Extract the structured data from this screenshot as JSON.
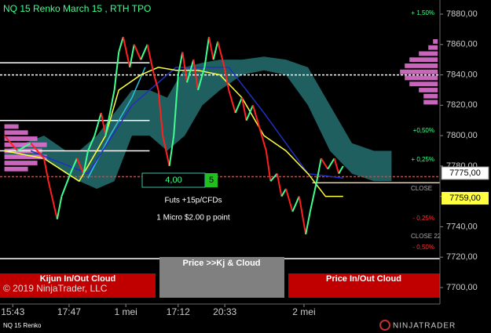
{
  "chart_data": {
    "type": "line",
    "title": "NQ 15 Renko March 15 , RTH TPO",
    "xlim": [
      0,
      100
    ],
    "xticks": [
      {
        "value": 2.9,
        "label": "15:43"
      },
      {
        "value": 15.7,
        "label": "17:47"
      },
      {
        "value": 28.6,
        "label": "1 mei"
      },
      {
        "value": 40.5,
        "label": "17:12"
      },
      {
        "value": 51.1,
        "label": "20:33"
      },
      {
        "value": 69.1,
        "label": "2 mei"
      }
    ],
    "ylim": [
      7690.7,
      7889.3
    ],
    "yticks": [
      {
        "value": 7880,
        "label": "7880,00"
      },
      {
        "value": 7860,
        "label": "7860,00"
      },
      {
        "value": 7840,
        "label": "7840,00"
      },
      {
        "value": 7820,
        "label": "7820,00"
      },
      {
        "value": 7800,
        "label": "7800,00"
      },
      {
        "value": 7780,
        "label": "7780,00"
      },
      {
        "value": 7760,
        "label": "7760,00"
      },
      {
        "value": 7740,
        "label": "7740,00"
      },
      {
        "value": 7720,
        "label": "7720,00"
      },
      {
        "value": 7700,
        "label": "7700,00"
      }
    ],
    "cloud": {
      "color": "#1f5f5f",
      "x": [
        1,
        10,
        15,
        18,
        22,
        26,
        30,
        34,
        38,
        42,
        46,
        50,
        55,
        60,
        65,
        70,
        75,
        80,
        85,
        89
      ],
      "upper": [
        7790,
        7800,
        7790,
        7790,
        7800,
        7815,
        7830,
        7830,
        7825,
        7845,
        7848,
        7850,
        7850,
        7852,
        7850,
        7845,
        7820,
        7795,
        7790,
        7790
      ],
      "lower": [
        7786,
        7785,
        7775,
        7770,
        7765,
        7770,
        7800,
        7800,
        7790,
        7800,
        7820,
        7830,
        7840,
        7843,
        7840,
        7820,
        7790,
        7775,
        7770,
        7770
      ]
    },
    "profile": {
      "color": "#e070d0",
      "left": {
        "x0": 1,
        "prices": [
          7806,
          7802,
          7798,
          7794,
          7790,
          7786,
          7782,
          7778
        ],
        "sizes": [
          3,
          5,
          7,
          9,
          8,
          9,
          7,
          5
        ]
      },
      "right": {
        "x0": 99.5,
        "prices": [
          7862,
          7858,
          7854,
          7850,
          7846,
          7842,
          7838,
          7834,
          7830,
          7826,
          7822
        ],
        "sizes": [
          1,
          2,
          4,
          6,
          7,
          8,
          7,
          6,
          4,
          3,
          3
        ]
      }
    },
    "levels": [
      {
        "value": 7848,
        "x": [
          0,
          34
        ],
        "color": "#ffffff",
        "dash": false
      },
      {
        "value": 7810,
        "x": [
          0,
          34
        ],
        "color": "#ffffff",
        "dash": false
      },
      {
        "value": 7790,
        "x": [
          0,
          34
        ],
        "color": "#ffffff",
        "dash": false
      },
      {
        "value": 7840,
        "x": [
          0,
          100
        ],
        "color": "#ffffff",
        "dash": true
      },
      {
        "value": 7773,
        "x": [
          0,
          100
        ],
        "color": "#ff3030",
        "dash": true
      },
      {
        "value": 7769,
        "x": [
          71,
          100
        ],
        "color": "#e8d0a0",
        "dash": false
      },
      {
        "value": 7719,
        "x": [
          0,
          100
        ],
        "color": "#ffffff",
        "dash": false
      }
    ],
    "series": [
      {
        "up_color": "#40ff90",
        "down_color": "#ff2020",
        "x": [
          1,
          4,
          7,
          10,
          11,
          13,
          14,
          16,
          17.5,
          19,
          20,
          21.5,
          23,
          24,
          26,
          27,
          28,
          29.5,
          30.5,
          32,
          33.5,
          35,
          36,
          37,
          38.5,
          39.5,
          40.5,
          41.5,
          42.5,
          44,
          45,
          46.5,
          47.5,
          48.5,
          49.5,
          51,
          52,
          53.5,
          55,
          56,
          57.5,
          59,
          60.5,
          61.5,
          63,
          64,
          65,
          66.5,
          68,
          69.5,
          70.5,
          72,
          73,
          74.5,
          76,
          77,
          78
        ],
        "values": [
          7800,
          7790,
          7795,
          7785,
          7770,
          7745,
          7760,
          7775,
          7785,
          7775,
          7790,
          7800,
          7815,
          7800,
          7830,
          7855,
          7865,
          7845,
          7860,
          7850,
          7860,
          7840,
          7830,
          7800,
          7780,
          7800,
          7840,
          7855,
          7835,
          7850,
          7830,
          7845,
          7865,
          7850,
          7862,
          7845,
          7830,
          7815,
          7825,
          7810,
          7820,
          7805,
          7790,
          7770,
          7775,
          7760,
          7765,
          7750,
          7760,
          7735,
          7750,
          7770,
          7785,
          7778,
          7785,
          7775,
          7780
        ]
      },
      {
        "color": "#ffff40",
        "x": [
          1,
          10,
          18,
          24,
          27,
          32,
          36,
          40,
          45,
          50,
          55,
          60,
          65,
          70,
          74,
          78
        ],
        "values": [
          7790,
          7785,
          7770,
          7800,
          7830,
          7840,
          7845,
          7843,
          7843,
          7840,
          7825,
          7800,
          7790,
          7775,
          7760,
          7760
        ]
      },
      {
        "color": "#2030c0",
        "x": [
          7,
          20,
          30,
          40,
          52,
          60,
          70,
          78
        ],
        "values": [
          7790,
          7775,
          7820,
          7845,
          7845,
          7815,
          7775,
          7772
        ]
      },
      {
        "color": "#30c0e0",
        "x": [
          20,
          25,
          30,
          33
        ],
        "values": [
          7772,
          7800,
          7825,
          7845
        ]
      }
    ],
    "texts": {
      "percent": [
        "+ 1,50%",
        "+0,50%",
        "+ 0,25%",
        "- 0,25%",
        "- 0,50%"
      ],
      "close": "CLOSE",
      "close22": "CLOSE 22",
      "last": "7775,00",
      "yellow": "7759,00",
      "qty": "4,00",
      "count": "5",
      "note1": "Futs +15p/CFDs",
      "note2": "1 Micro $2.00 p point",
      "btn1": "Kijun In/Out Cloud",
      "btn2": "Price >>Kj & Cloud",
      "btn3": "Price In/Out Cloud",
      "copyright": "© 2019 NinjaTrader, LLC",
      "instrument": "NQ 15 Renko",
      "logo": "NINJATRADER"
    }
  }
}
